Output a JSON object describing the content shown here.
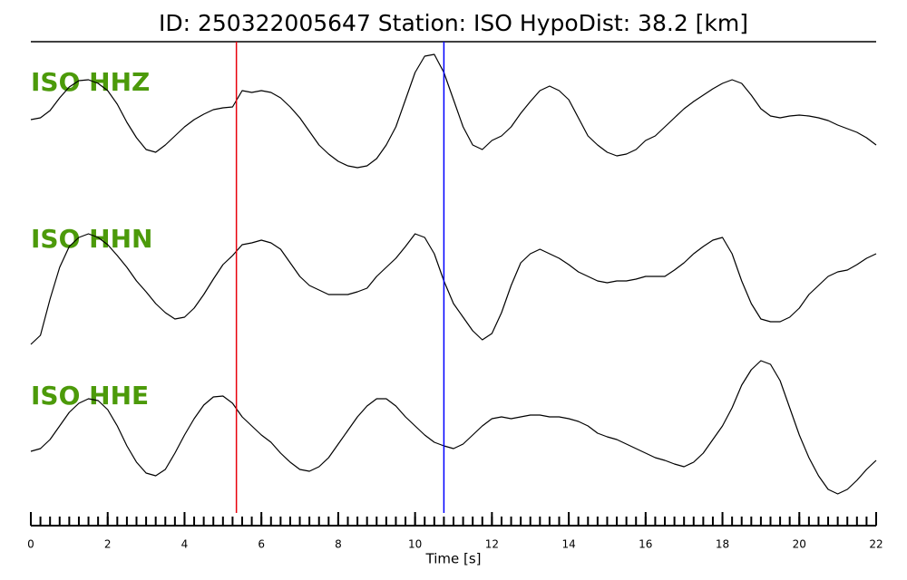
{
  "chart_data": {
    "type": "line",
    "title": "ID: 250322005647   Station: ISO   HypoDist:    38.2 [km]",
    "xlabel": "Time [s]",
    "xlim": [
      0,
      22
    ],
    "xticks": [
      0,
      2,
      4,
      6,
      8,
      10,
      12,
      14,
      16,
      18,
      20,
      22
    ],
    "xminorticks": [
      0,
      0.25,
      0.5,
      0.75,
      1,
      1.25,
      1.5,
      1.75,
      2,
      2.25,
      2.5,
      2.75,
      3,
      3.25,
      3.5,
      3.75,
      4,
      4.25,
      4.5,
      4.75,
      5,
      5.25,
      5.5,
      5.75,
      6,
      6.25,
      6.5,
      6.75,
      7,
      7.25,
      7.5,
      7.75,
      8,
      8.25,
      8.5,
      8.75,
      9,
      9.25,
      9.5,
      9.75,
      10,
      10.25,
      10.5,
      10.75,
      11,
      11.25,
      11.5,
      11.75,
      12,
      12.25,
      12.5,
      12.75,
      13,
      13.25,
      13.5,
      13.75,
      14,
      14.25,
      14.5,
      14.75,
      15,
      15.25,
      15.5,
      15.75,
      16,
      16.25,
      16.5,
      16.75,
      17,
      17.25,
      17.5,
      17.75,
      18,
      18.25,
      18.5,
      18.75,
      19,
      19.25,
      19.5,
      19.75,
      20,
      20.25,
      20.5,
      20.75,
      21,
      21.25,
      21.5,
      21.75,
      22
    ],
    "ylim": [
      -80,
      80
    ],
    "x": [
      0,
      0.25,
      0.5,
      0.75,
      1,
      1.25,
      1.5,
      1.75,
      2,
      2.25,
      2.5,
      2.75,
      3,
      3.25,
      3.5,
      3.75,
      4,
      4.25,
      4.5,
      4.75,
      5,
      5.25,
      5.5,
      5.75,
      6,
      6.25,
      6.5,
      6.75,
      7,
      7.25,
      7.5,
      7.75,
      8,
      8.25,
      8.5,
      8.75,
      9,
      9.25,
      9.5,
      9.75,
      10,
      10.25,
      10.5,
      10.75,
      11,
      11.25,
      11.5,
      11.75,
      12,
      12.25,
      12.5,
      12.75,
      13,
      13.25,
      13.5,
      13.75,
      14,
      14.25,
      14.5,
      14.75,
      15,
      15.25,
      15.5,
      15.75,
      16,
      16.25,
      16.5,
      16.75,
      17,
      17.25,
      17.5,
      17.75,
      18,
      18.25,
      18.5,
      18.75,
      19,
      19.25,
      19.5,
      19.75,
      20,
      20.25,
      20.5,
      20.75,
      21,
      21.25,
      21.5,
      21.75,
      22
    ],
    "series": [
      {
        "name": "ISO HHZ",
        "color": "#000000",
        "label_color": "#4c9a0a",
        "values": [
          -7,
          -5,
          3,
          17,
          29,
          36,
          37,
          33,
          25,
          10,
          -10,
          -27,
          -40,
          -43,
          -35,
          -25,
          -15,
          -7,
          -1,
          4,
          6,
          7,
          25,
          23,
          25,
          23,
          17,
          7,
          -5,
          -20,
          -35,
          -45,
          -53,
          -58,
          -60,
          -58,
          -50,
          -35,
          -15,
          15,
          45,
          63,
          65,
          45,
          15,
          -15,
          -35,
          -40,
          -30,
          -25,
          -15,
          0,
          13,
          25,
          30,
          25,
          15,
          -5,
          -25,
          -35,
          -43,
          -47,
          -45,
          -40,
          -30,
          -25,
          -15,
          -5,
          5,
          13,
          20,
          27,
          33,
          37,
          33,
          20,
          5,
          -3,
          -5,
          -3,
          -2,
          -3,
          -5,
          -8,
          -13,
          -17,
          -21,
          -27,
          -35
        ]
      },
      {
        "name": "ISO HHN",
        "color": "#000000",
        "label_color": "#4c9a0a",
        "values": [
          -65,
          -55,
          -15,
          20,
          43,
          53,
          57,
          53,
          45,
          33,
          20,
          5,
          -7,
          -20,
          -30,
          -37,
          -35,
          -25,
          -10,
          7,
          23,
          33,
          45,
          47,
          50,
          47,
          40,
          25,
          10,
          0,
          -5,
          -10,
          -10,
          -10,
          -7,
          -3,
          10,
          20,
          30,
          43,
          57,
          53,
          35,
          5,
          -20,
          -35,
          -50,
          -60,
          -53,
          -30,
          0,
          25,
          35,
          40,
          35,
          30,
          23,
          15,
          10,
          5,
          3,
          5,
          5,
          7,
          10,
          10,
          10,
          17,
          25,
          35,
          43,
          50,
          53,
          35,
          5,
          -20,
          -37,
          -40,
          -40,
          -35,
          -25,
          -10,
          0,
          10,
          15,
          17,
          23,
          30,
          35
        ]
      },
      {
        "name": "ISO HHE",
        "color": "#000000",
        "label_color": "#4c9a0a",
        "values": [
          -28,
          -25,
          -15,
          0,
          15,
          25,
          30,
          28,
          18,
          0,
          -22,
          -40,
          -52,
          -55,
          -48,
          -30,
          -10,
          8,
          23,
          32,
          33,
          25,
          10,
          0,
          -10,
          -18,
          -30,
          -40,
          -48,
          -50,
          -45,
          -35,
          -20,
          -5,
          10,
          22,
          30,
          30,
          22,
          10,
          0,
          -10,
          -18,
          -22,
          -25,
          -20,
          -10,
          0,
          8,
          10,
          8,
          10,
          12,
          12,
          10,
          10,
          8,
          5,
          0,
          -8,
          -12,
          -15,
          -20,
          -25,
          -30,
          -35,
          -38,
          -42,
          -45,
          -40,
          -30,
          -15,
          0,
          20,
          45,
          62,
          72,
          68,
          50,
          20,
          -10,
          -35,
          -55,
          -70,
          -75,
          -70,
          -60,
          -48,
          -38
        ]
      }
    ],
    "markers": [
      {
        "x": 5.35,
        "color": "#e8000b"
      },
      {
        "x": 10.75,
        "color": "#0000ff"
      }
    ]
  }
}
